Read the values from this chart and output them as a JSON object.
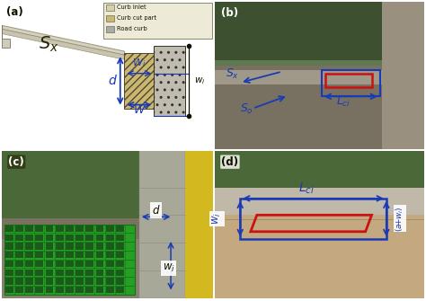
{
  "blue": "#1a3ab5",
  "red": "#cc1111",
  "panel_a": {
    "bg": "#e8e4d8",
    "road_color": "#d5d0c0",
    "road_edge": "#999977",
    "hatch_color": "#c8b870",
    "curb_color": "#c0b898",
    "curb_solid_color": "#aaaaaa",
    "legend": [
      "Curb inlet",
      "Curb cut part",
      "Road curb"
    ],
    "legend_colors": [
      "#d8d0a8",
      "#c8b870",
      "#aaaaaa"
    ]
  },
  "panel_b": {
    "sky_top": "#4a5e3a",
    "sky_mid": "#5a6e4a",
    "road_color": "#7a7868",
    "curb_color": "#9a9888",
    "label_bg": "#e8e4d8"
  },
  "panel_c": {
    "veg_color": "#4a6e38",
    "gravel_color": "#8a8070",
    "paving_color": "#a8a898",
    "grate_color": "#2a9a2a",
    "grate_dark": "#1a6a1a",
    "yellow_color": "#d4b820",
    "label_bg": "#e8e4d8"
  },
  "panel_d": {
    "veg_color": "#5a7840",
    "stone_color": "#b8b0a0",
    "road_color": "#c0a888",
    "label_bg": "#e8e4d8"
  }
}
